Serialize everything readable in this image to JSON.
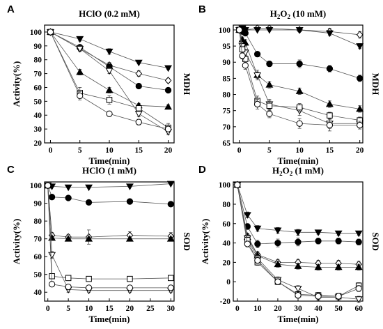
{
  "figure": {
    "title": ""
  },
  "chart_data": [
    {
      "panel": "A",
      "type": "line",
      "title": "HClO (0.2 mM)",
      "side_label": "MDH",
      "xlabel": "Time(min)",
      "ylabel": "Activity(%)",
      "xlim": [
        -1,
        21
      ],
      "ylim": [
        20,
        105
      ],
      "xticks": [
        0,
        5,
        10,
        15,
        20
      ],
      "yticks": [
        20,
        30,
        40,
        50,
        60,
        70,
        80,
        90,
        100
      ],
      "x": [
        0,
        5,
        10,
        15,
        20
      ],
      "series": [
        {
          "marker": "triangle-down-filled",
          "values": [
            100,
            95,
            86,
            78,
            74
          ],
          "err": [
            2,
            1.5,
            2,
            1,
            1
          ]
        },
        {
          "marker": "diamond-open",
          "values": [
            100,
            88,
            76,
            70,
            65
          ],
          "err": [
            2,
            1.5,
            2,
            2,
            1.5
          ]
        },
        {
          "marker": "circle-filled",
          "values": [
            100,
            89,
            75,
            61,
            58
          ],
          "err": [
            2,
            1.5,
            1.5,
            1.5,
            1.5
          ]
        },
        {
          "marker": "triangle-up-filled",
          "values": [
            100,
            71,
            58,
            47,
            46
          ],
          "err": [
            2,
            2,
            2,
            1.5,
            1.5
          ]
        },
        {
          "marker": "triangle-down-open",
          "values": [
            100,
            88,
            72,
            41,
            28
          ],
          "err": [
            2,
            2,
            2,
            2,
            2
          ]
        },
        {
          "marker": "square-open",
          "values": [
            100,
            56,
            51,
            45,
            31
          ],
          "err": [
            2,
            4,
            3,
            2,
            3
          ]
        },
        {
          "marker": "circle-open",
          "values": [
            100,
            54,
            41,
            35,
            30
          ],
          "err": [
            2,
            3,
            2,
            2,
            2
          ]
        }
      ]
    },
    {
      "panel": "B",
      "type": "line",
      "title": "H2O2 (10 mM)",
      "title_parts": [
        "H",
        "2",
        "O",
        "2",
        " (10 mM)"
      ],
      "side_label": "MDH",
      "xlabel": "Time(min)",
      "ylabel": "",
      "xlim": [
        -1,
        20.5
      ],
      "ylim": [
        65,
        101.5
      ],
      "xticks": [
        0,
        5,
        10,
        15,
        20
      ],
      "yticks": [
        65,
        70,
        75,
        80,
        85,
        90,
        95,
        100
      ],
      "x": [
        0,
        0.5,
        1,
        3,
        5,
        10,
        15,
        20
      ],
      "series": [
        {
          "marker": "diamond-open",
          "values": [
            100,
            100,
            100,
            100.5,
            100.5,
            100,
            99.5,
            98.5
          ],
          "err": [
            0.5,
            0.5,
            0.5,
            0.5,
            0.5,
            0.5,
            1,
            1
          ]
        },
        {
          "marker": "triangle-down-filled",
          "values": [
            100,
            100.5,
            100,
            100,
            100,
            100,
            99,
            95
          ],
          "err": [
            0.5,
            0.5,
            0.5,
            0.5,
            0.5,
            0.5,
            0.8,
            0.8
          ]
        },
        {
          "marker": "circle-filled",
          "values": [
            100,
            99.5,
            99,
            92.5,
            89.5,
            89.5,
            88,
            85
          ],
          "err": [
            0.5,
            0.5,
            0.5,
            0.8,
            0.8,
            1.2,
            1,
            1
          ]
        },
        {
          "marker": "triangle-up-filled",
          "values": [
            100,
            97,
            96,
            86,
            83,
            81,
            77,
            75.5
          ],
          "err": [
            0.5,
            0.8,
            1,
            1,
            1,
            1,
            1,
            1
          ]
        },
        {
          "marker": "triangle-down-open",
          "values": [
            100,
            95,
            93,
            86,
            77,
            75,
            71,
            71
          ],
          "err": [
            0.5,
            0.8,
            1,
            1.5,
            1.5,
            1.5,
            1.5,
            1
          ]
        },
        {
          "marker": "square-open",
          "values": [
            100,
            94,
            91,
            78,
            76.5,
            76,
            73.5,
            72
          ],
          "err": [
            0.5,
            0.8,
            1,
            1.5,
            1.5,
            1.2,
            1,
            1
          ]
        },
        {
          "marker": "circle-open",
          "values": [
            100,
            92,
            89,
            77,
            74,
            71,
            70.5,
            70.5
          ],
          "err": [
            0.5,
            1,
            1.2,
            1.5,
            1.2,
            1.5,
            1.8,
            1.2
          ]
        }
      ]
    },
    {
      "panel": "C",
      "type": "line",
      "title": "HClO (1 mM)",
      "side_label": "SOD",
      "xlabel": "Time(min)",
      "ylabel": "Activity(%)",
      "xlim": [
        -0.8,
        30.8
      ],
      "ylim": [
        35,
        102
      ],
      "xticks": [
        0,
        5,
        10,
        15,
        20,
        25,
        30
      ],
      "yticks": [
        40,
        50,
        60,
        70,
        80,
        90,
        100
      ],
      "x": [
        0,
        1,
        5,
        10,
        20,
        30
      ],
      "series": [
        {
          "marker": "triangle-down-filled",
          "values": [
            100,
            99.5,
            99,
            99,
            99.5,
            101
          ],
          "err": [
            0.5,
            0.5,
            0.5,
            0.5,
            0.5,
            0.5
          ]
        },
        {
          "marker": "circle-filled",
          "values": [
            100,
            93.5,
            93,
            90.5,
            91,
            89.5
          ],
          "err": [
            0.5,
            0.8,
            0.8,
            0.8,
            0.8,
            0.8
          ]
        },
        {
          "marker": "diamond-open",
          "values": [
            100,
            72,
            71,
            71,
            72,
            71.5
          ],
          "err": [
            0.5,
            1.5,
            1.5,
            4,
            2,
            2
          ]
        },
        {
          "marker": "triangle-up-filled",
          "values": [
            100,
            70.5,
            70,
            70,
            70,
            70
          ],
          "err": [
            0.5,
            1,
            1,
            1,
            1,
            1
          ]
        },
        {
          "marker": "triangle-down-open",
          "values": [
            100,
            61,
            41.5,
            41,
            41,
            41
          ],
          "err": [
            0.5,
            2,
            1.5,
            1,
            1,
            1
          ]
        },
        {
          "marker": "square-open",
          "values": [
            100,
            49,
            48,
            47.5,
            47.5,
            48
          ],
          "err": [
            0.5,
            1.5,
            1.5,
            1,
            1,
            1
          ]
        },
        {
          "marker": "circle-open",
          "values": [
            100,
            44.5,
            43,
            42.5,
            42.5,
            42.5
          ],
          "err": [
            0.5,
            1.5,
            1,
            1,
            1,
            1
          ]
        }
      ]
    },
    {
      "panel": "D",
      "type": "line",
      "title": "H2O2 (1 mM)",
      "title_parts": [
        "H",
        "2",
        "O",
        "2",
        " (1 mM)"
      ],
      "side_label": "SOD",
      "xlabel": "Time(min)",
      "ylabel": "Activity(%)",
      "xlim": [
        -2,
        62
      ],
      "ylim": [
        -20,
        103
      ],
      "xticks": [
        0,
        10,
        20,
        30,
        40,
        50,
        60
      ],
      "yticks": [
        -20,
        0,
        20,
        40,
        60,
        80,
        100
      ],
      "x": [
        0,
        5,
        10,
        20,
        30,
        40,
        50,
        60
      ],
      "series": [
        {
          "marker": "triangle-down-filled",
          "values": [
            100,
            69,
            55,
            53,
            51,
            51,
            50,
            50
          ],
          "err": [
            1,
            3,
            3,
            3,
            3,
            2,
            2,
            2
          ]
        },
        {
          "marker": "circle-filled",
          "values": [
            100,
            57,
            39,
            40,
            41,
            42,
            42,
            41
          ],
          "err": [
            1,
            3,
            4,
            4,
            4,
            3,
            3,
            3
          ]
        },
        {
          "marker": "diamond-open",
          "values": [
            100,
            47,
            28,
            20,
            20,
            19,
            19,
            18
          ],
          "err": [
            1,
            3,
            3,
            3,
            3,
            3,
            3,
            3
          ]
        },
        {
          "marker": "triangle-up-filled",
          "values": [
            100,
            46,
            27,
            18,
            16,
            15,
            15,
            15
          ],
          "err": [
            1,
            3,
            3,
            3,
            3,
            3,
            3,
            3
          ]
        },
        {
          "marker": "triangle-down-open",
          "values": [
            100,
            45,
            24,
            2,
            -7,
            -16,
            -16,
            -18
          ],
          "err": [
            1,
            3,
            3,
            3,
            3,
            3,
            3,
            3
          ]
        },
        {
          "marker": "square-open",
          "values": [
            100,
            43,
            20,
            0,
            -13,
            -14,
            -15,
            -4
          ],
          "err": [
            1,
            3,
            3,
            3,
            3,
            3,
            3,
            3
          ]
        },
        {
          "marker": "circle-open",
          "values": [
            100,
            39,
            22,
            0,
            -14,
            -15,
            -15,
            -7
          ],
          "err": [
            1,
            3,
            3,
            3,
            3,
            3,
            3,
            3
          ]
        }
      ]
    }
  ]
}
